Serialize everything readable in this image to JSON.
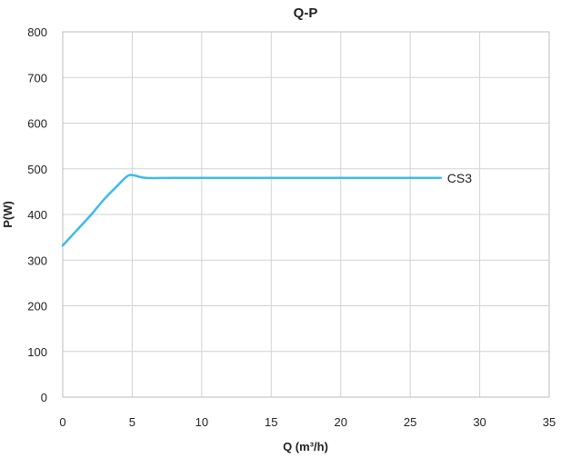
{
  "chart_data": {
    "type": "line",
    "title": "Q-P",
    "xlabel": "Q (m³/h)",
    "ylabel": "P(W)",
    "xlim": [
      0,
      35
    ],
    "ylim": [
      0,
      800
    ],
    "xticks": [
      0,
      5,
      10,
      15,
      20,
      25,
      30,
      35
    ],
    "yticks": [
      0,
      100,
      200,
      300,
      400,
      500,
      600,
      700,
      800
    ],
    "x_tick_labels": [
      "0",
      "5",
      "10",
      "15",
      "20",
      "25",
      "30",
      "35"
    ],
    "y_tick_labels": [
      "0",
      "100",
      "200",
      "300",
      "400",
      "500",
      "600",
      "700",
      "800"
    ],
    "grid": true,
    "series": [
      {
        "name": "CS3",
        "color": "#3dbbe8",
        "x": [
          0,
          1,
          2,
          3,
          4,
          4.7,
          5.2,
          6,
          8,
          12,
          16,
          20,
          24,
          27.2
        ],
        "y": [
          332,
          365,
          398,
          434,
          465,
          485,
          485,
          480,
          480,
          480,
          480,
          480,
          480,
          480
        ]
      }
    ]
  }
}
